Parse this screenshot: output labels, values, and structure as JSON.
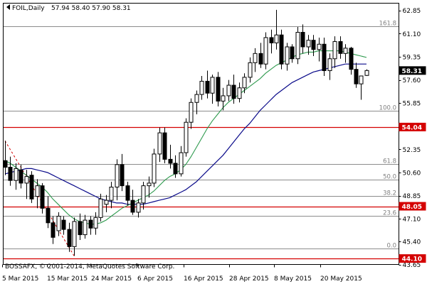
{
  "window": {
    "symbol": "FOIL,Daily",
    "ohlc": "57.94 58.40 57.90 58.31",
    "copyright": "BOSSAFX, © 2001-2014, MetaQuotes Software Corp."
  },
  "price_axis": {
    "labels": [
      "62.85",
      "61.10",
      "59.35",
      "57.60",
      "55.85",
      "52.35",
      "50.60",
      "48.85",
      "47.10",
      "45.40",
      "43.65"
    ],
    "current_price": "58.31"
  },
  "fibonacci": [
    {
      "label": "161.8",
      "price": 61.67
    },
    {
      "label": "100.0",
      "price": 55.25
    },
    {
      "label": "61.8",
      "price": 51.27
    },
    {
      "label": "50.0",
      "price": 50.05
    },
    {
      "label": "38.2",
      "price": 48.82
    },
    {
      "label": "23.6",
      "price": 47.3
    },
    {
      "label": "0.0",
      "price": 44.85
    }
  ],
  "horizontal_levels": [
    {
      "label": "54.04",
      "price": 54.04,
      "color": "#d40000"
    },
    {
      "label": "48.05",
      "price": 48.05,
      "color": "#d40000"
    },
    {
      "label": "44.10",
      "price": 44.1,
      "color": "#d40000"
    }
  ],
  "colors": {
    "bull_candle": "#ffffff",
    "bear_candle": "#000000",
    "ma_fast": "#2e9a4e",
    "ma_slow": "#0a0a8a",
    "fib": "#8c8c8c",
    "level": "#d40000",
    "current_price_bg": "#000000"
  },
  "chart_data": {
    "type": "candlestick",
    "symbol": "FOIL",
    "timeframe": "Daily",
    "x_labels": [
      "5 Mar 2015",
      "15 Mar 2015",
      "24 Mar 2015",
      "6 Apr 2015",
      "16 Apr 2015",
      "28 Apr 2015",
      "8 May 2015",
      "20 May 2015"
    ],
    "ylim": [
      43.65,
      63.4
    ],
    "candles": [
      {
        "o": 51.5,
        "h": 53.0,
        "l": 50.4,
        "c": 51.0
      },
      {
        "o": 51.0,
        "h": 51.8,
        "l": 49.6,
        "c": 50.0
      },
      {
        "o": 50.0,
        "h": 51.3,
        "l": 49.3,
        "c": 50.9
      },
      {
        "o": 50.8,
        "h": 51.2,
        "l": 49.4,
        "c": 49.8
      },
      {
        "o": 49.8,
        "h": 50.8,
        "l": 48.6,
        "c": 50.3
      },
      {
        "o": 50.4,
        "h": 50.7,
        "l": 48.3,
        "c": 48.6
      },
      {
        "o": 48.8,
        "h": 50.1,
        "l": 47.9,
        "c": 49.6
      },
      {
        "o": 49.6,
        "h": 49.8,
        "l": 47.5,
        "c": 47.9
      },
      {
        "o": 47.9,
        "h": 48.8,
        "l": 46.4,
        "c": 46.8
      },
      {
        "o": 46.8,
        "h": 47.3,
        "l": 45.2,
        "c": 45.7
      },
      {
        "o": 46.2,
        "h": 47.6,
        "l": 45.8,
        "c": 47.3
      },
      {
        "o": 47.0,
        "h": 47.3,
        "l": 45.9,
        "c": 46.3
      },
      {
        "o": 46.3,
        "h": 46.8,
        "l": 44.6,
        "c": 45.0
      },
      {
        "o": 45.0,
        "h": 47.2,
        "l": 44.3,
        "c": 46.9
      },
      {
        "o": 46.9,
        "h": 47.5,
        "l": 45.5,
        "c": 45.9
      },
      {
        "o": 45.9,
        "h": 47.4,
        "l": 45.6,
        "c": 47.0
      },
      {
        "o": 47.0,
        "h": 47.3,
        "l": 45.9,
        "c": 46.4
      },
      {
        "o": 46.4,
        "h": 47.6,
        "l": 45.9,
        "c": 47.2
      },
      {
        "o": 47.2,
        "h": 49.0,
        "l": 46.9,
        "c": 48.6
      },
      {
        "o": 48.2,
        "h": 48.9,
        "l": 47.6,
        "c": 48.5
      },
      {
        "o": 48.5,
        "h": 49.9,
        "l": 47.9,
        "c": 49.5
      },
      {
        "o": 49.5,
        "h": 51.6,
        "l": 48.5,
        "c": 51.2
      },
      {
        "o": 51.2,
        "h": 52.0,
        "l": 49.2,
        "c": 49.6
      },
      {
        "o": 49.6,
        "h": 49.9,
        "l": 48.1,
        "c": 48.5
      },
      {
        "o": 48.5,
        "h": 49.3,
        "l": 47.4,
        "c": 47.6
      },
      {
        "o": 47.6,
        "h": 48.6,
        "l": 47.2,
        "c": 48.3
      },
      {
        "o": 48.3,
        "h": 49.9,
        "l": 47.8,
        "c": 49.6
      },
      {
        "o": 49.6,
        "h": 50.3,
        "l": 48.7,
        "c": 49.8
      },
      {
        "o": 49.8,
        "h": 52.4,
        "l": 49.5,
        "c": 52.0
      },
      {
        "o": 52.0,
        "h": 54.0,
        "l": 51.4,
        "c": 53.6
      },
      {
        "o": 53.6,
        "h": 54.0,
        "l": 51.3,
        "c": 51.6
      },
      {
        "o": 51.6,
        "h": 52.7,
        "l": 50.9,
        "c": 51.3
      },
      {
        "o": 51.3,
        "h": 51.9,
        "l": 50.2,
        "c": 50.5
      },
      {
        "o": 50.5,
        "h": 52.6,
        "l": 50.3,
        "c": 52.1
      },
      {
        "o": 52.1,
        "h": 54.7,
        "l": 51.8,
        "c": 54.4
      },
      {
        "o": 54.4,
        "h": 56.2,
        "l": 53.9,
        "c": 55.9
      },
      {
        "o": 55.9,
        "h": 56.8,
        "l": 55.0,
        "c": 56.5
      },
      {
        "o": 56.5,
        "h": 57.9,
        "l": 56.1,
        "c": 57.5
      },
      {
        "o": 57.5,
        "h": 58.3,
        "l": 56.2,
        "c": 56.6
      },
      {
        "o": 56.6,
        "h": 58.0,
        "l": 55.8,
        "c": 57.8
      },
      {
        "o": 57.8,
        "h": 58.2,
        "l": 55.6,
        "c": 56.0
      },
      {
        "o": 56.0,
        "h": 57.0,
        "l": 55.3,
        "c": 56.4
      },
      {
        "o": 56.4,
        "h": 57.6,
        "l": 56.0,
        "c": 57.2
      },
      {
        "o": 57.2,
        "h": 58.0,
        "l": 55.8,
        "c": 56.2
      },
      {
        "o": 56.2,
        "h": 57.4,
        "l": 55.9,
        "c": 57.0
      },
      {
        "o": 57.0,
        "h": 58.1,
        "l": 56.6,
        "c": 57.8
      },
      {
        "o": 57.8,
        "h": 59.3,
        "l": 57.4,
        "c": 58.9
      },
      {
        "o": 58.9,
        "h": 60.0,
        "l": 58.2,
        "c": 59.6
      },
      {
        "o": 59.6,
        "h": 60.4,
        "l": 58.5,
        "c": 58.8
      },
      {
        "o": 58.8,
        "h": 61.2,
        "l": 58.4,
        "c": 60.8
      },
      {
        "o": 60.8,
        "h": 61.4,
        "l": 59.6,
        "c": 60.4
      },
      {
        "o": 60.4,
        "h": 62.9,
        "l": 59.9,
        "c": 61.0
      },
      {
        "o": 61.0,
        "h": 61.4,
        "l": 58.4,
        "c": 58.8
      },
      {
        "o": 58.8,
        "h": 60.4,
        "l": 58.3,
        "c": 60.1
      },
      {
        "o": 60.1,
        "h": 60.3,
        "l": 58.9,
        "c": 59.2
      },
      {
        "o": 59.2,
        "h": 61.6,
        "l": 58.8,
        "c": 61.2
      },
      {
        "o": 61.2,
        "h": 61.8,
        "l": 59.6,
        "c": 60.1
      },
      {
        "o": 60.1,
        "h": 61.0,
        "l": 59.5,
        "c": 60.6
      },
      {
        "o": 60.6,
        "h": 61.0,
        "l": 59.4,
        "c": 59.9
      },
      {
        "o": 59.9,
        "h": 60.8,
        "l": 59.0,
        "c": 60.3
      },
      {
        "o": 60.3,
        "h": 60.8,
        "l": 57.9,
        "c": 58.3
      },
      {
        "o": 58.3,
        "h": 59.6,
        "l": 57.6,
        "c": 59.2
      },
      {
        "o": 59.2,
        "h": 60.9,
        "l": 58.5,
        "c": 60.5
      },
      {
        "o": 60.5,
        "h": 60.9,
        "l": 59.2,
        "c": 59.6
      },
      {
        "o": 59.6,
        "h": 60.3,
        "l": 58.9,
        "c": 60.0
      },
      {
        "o": 60.0,
        "h": 60.1,
        "l": 58.0,
        "c": 58.4
      },
      {
        "o": 58.4,
        "h": 58.9,
        "l": 57.0,
        "c": 57.3
      },
      {
        "o": 57.3,
        "h": 57.9,
        "l": 56.1,
        "c": 57.9
      },
      {
        "o": 57.94,
        "h": 58.4,
        "l": 57.9,
        "c": 58.31
      }
    ],
    "ma_fast": [
      51.5,
      51.3,
      51.0,
      50.7,
      50.4,
      50.1,
      49.8,
      49.5,
      49.1,
      48.6,
      48.2,
      47.8,
      47.4,
      47.1,
      46.9,
      46.8,
      46.7,
      46.7,
      46.8,
      47.0,
      47.3,
      47.6,
      47.9,
      48.1,
      48.3,
      48.5,
      48.7,
      48.9,
      49.2,
      49.6,
      50.0,
      50.3,
      50.5,
      50.8,
      51.2,
      51.8,
      52.5,
      53.2,
      53.9,
      54.5,
      55.0,
      55.5,
      55.9,
      56.2,
      56.5,
      56.8,
      57.1,
      57.4,
      57.7,
      58.1,
      58.4,
      58.7,
      58.9,
      59.1,
      59.3,
      59.5,
      59.6,
      59.7,
      59.7,
      59.8,
      59.8,
      59.8,
      59.8,
      59.8,
      59.7,
      59.6,
      59.5,
      59.4,
      59.3
    ],
    "ma_slow": [
      50.5,
      50.6,
      50.7,
      50.8,
      50.9,
      50.9,
      50.8,
      50.7,
      50.6,
      50.4,
      50.2,
      50.0,
      49.8,
      49.6,
      49.4,
      49.2,
      49.0,
      48.8,
      48.6,
      48.5,
      48.4,
      48.3,
      48.3,
      48.2,
      48.2,
      48.2,
      48.2,
      48.3,
      48.4,
      48.5,
      48.6,
      48.7,
      48.9,
      49.1,
      49.3,
      49.6,
      49.9,
      50.3,
      50.7,
      51.1,
      51.5,
      51.9,
      52.4,
      52.9,
      53.4,
      53.9,
      54.3,
      54.8,
      55.3,
      55.7,
      56.1,
      56.5,
      56.8,
      57.1,
      57.4,
      57.6,
      57.8,
      58.0,
      58.2,
      58.3,
      58.4,
      58.5,
      58.6,
      58.7,
      58.8,
      58.8,
      58.8,
      58.8,
      58.8
    ],
    "zigzag": [
      {
        "i": 0,
        "p": 53.0
      },
      {
        "i": 13,
        "p": 44.3
      }
    ]
  }
}
